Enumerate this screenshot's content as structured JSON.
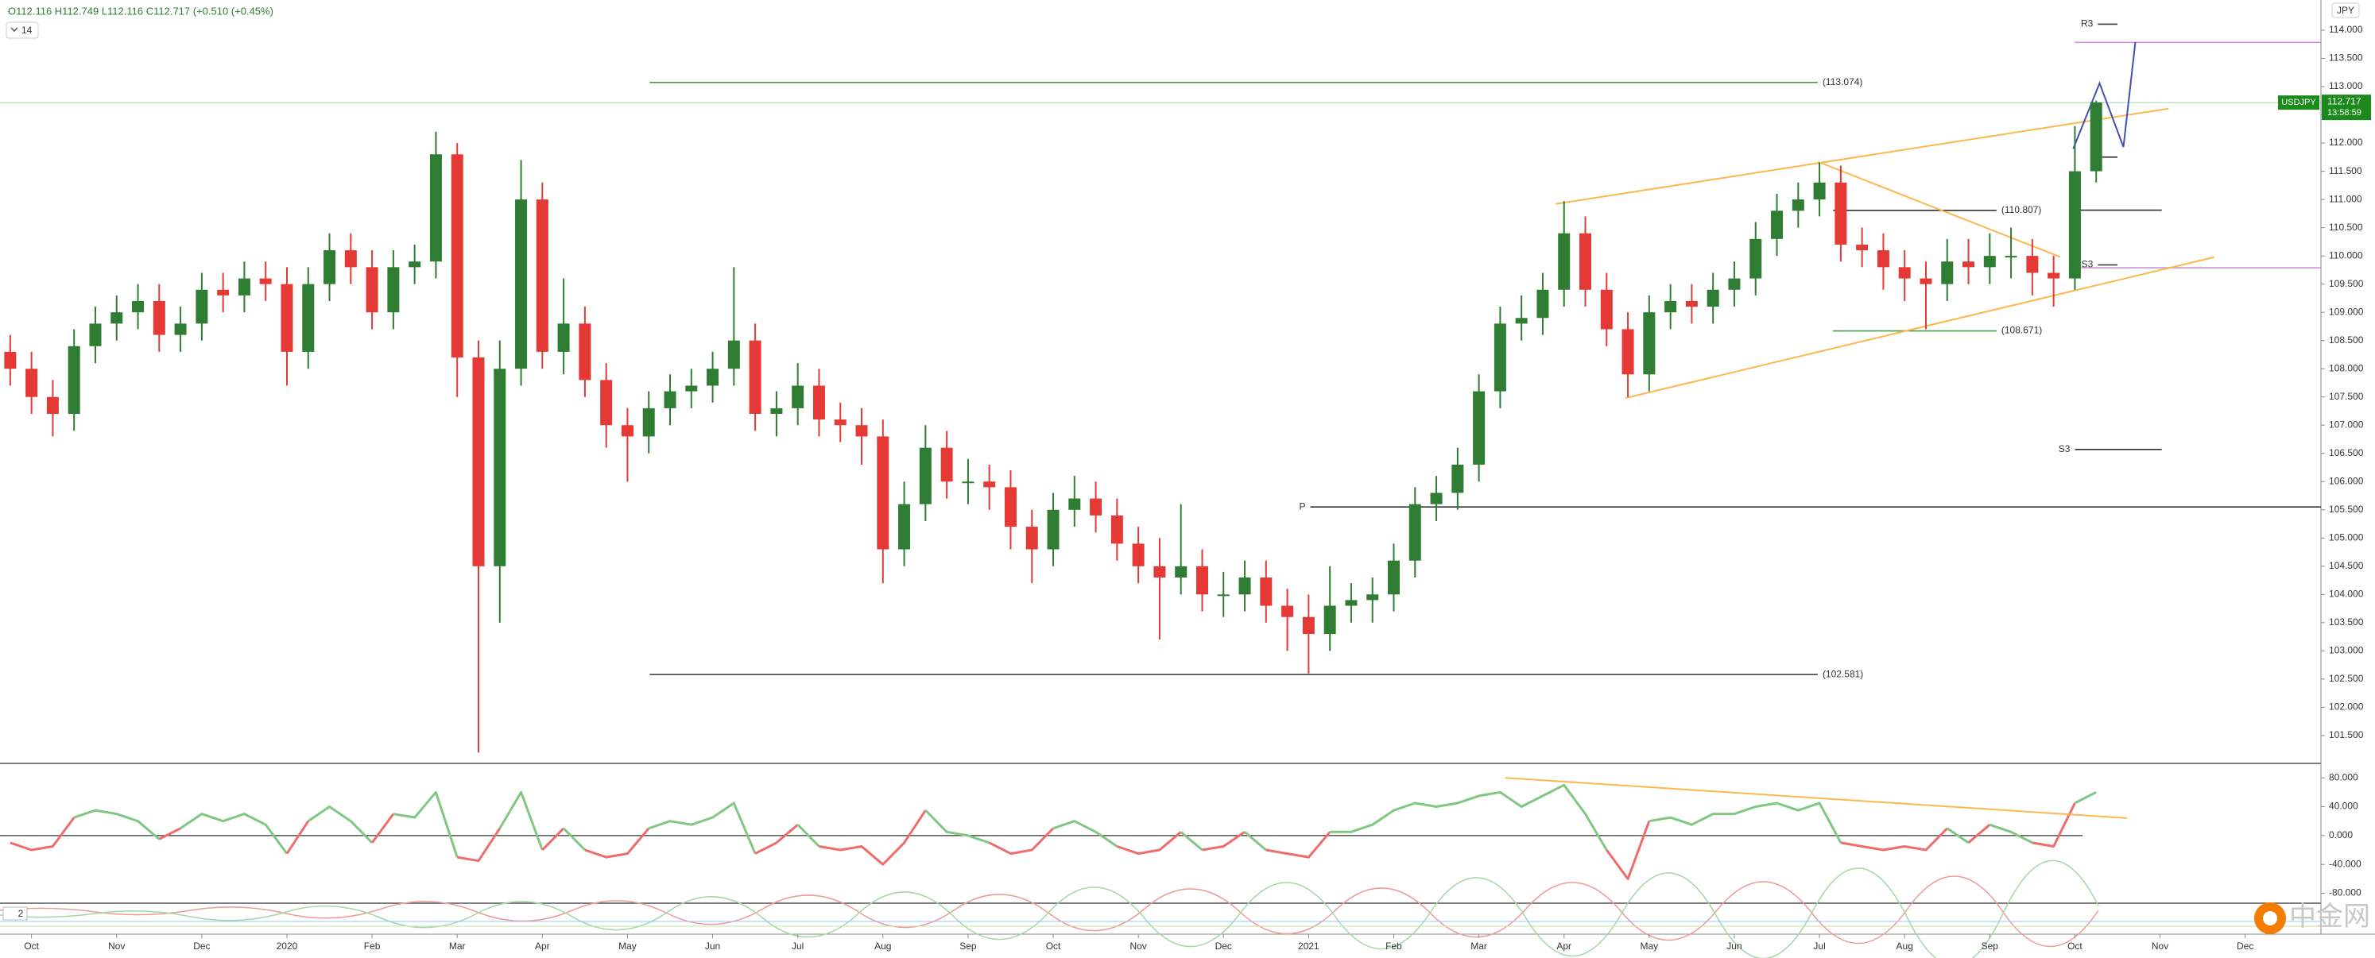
{
  "chart_data": {
    "type": "candlestick",
    "header": "O112.116 H112.749 L112.116 C112.717 (+0.510 (+0.45%)",
    "interval": "14",
    "currency": "JPY",
    "panel_label": "2",
    "watermark": "中金网",
    "up_color": "#2e7d32",
    "down_color": "#e53935",
    "xlim": [
      -0.37,
      26.89
    ],
    "ylim": [
      101.02,
      114.535
    ],
    "xticks": [
      {
        "value": 0,
        "label": "Oct"
      },
      {
        "value": 1,
        "label": "Nov"
      },
      {
        "value": 2,
        "label": "Dec"
      },
      {
        "value": 3,
        "label": "2020"
      },
      {
        "value": 4,
        "label": "Feb"
      },
      {
        "value": 5,
        "label": "Mar"
      },
      {
        "value": 6,
        "label": "Apr"
      },
      {
        "value": 7,
        "label": "May"
      },
      {
        "value": 8,
        "label": "Jun"
      },
      {
        "value": 9,
        "label": "Jul"
      },
      {
        "value": 10,
        "label": "Aug"
      },
      {
        "value": 11,
        "label": "Sep"
      },
      {
        "value": 12,
        "label": "Oct"
      },
      {
        "value": 13,
        "label": "Nov"
      },
      {
        "value": 14,
        "label": "Dec"
      },
      {
        "value": 15,
        "label": "2021"
      },
      {
        "value": 16,
        "label": "Feb"
      },
      {
        "value": 17,
        "label": "Mar"
      },
      {
        "value": 18,
        "label": "Apr"
      },
      {
        "value": 19,
        "label": "May"
      },
      {
        "value": 20,
        "label": "Jun"
      },
      {
        "value": 21,
        "label": "Jul"
      },
      {
        "value": 22,
        "label": "Aug"
      },
      {
        "value": 23,
        "label": "Sep"
      },
      {
        "value": 24,
        "label": "Oct"
      },
      {
        "value": 25,
        "label": "Nov"
      },
      {
        "value": 26,
        "label": "Dec"
      }
    ],
    "yticks": [
      {
        "value": 101.5,
        "label": "101.500"
      },
      {
        "value": 102,
        "label": "102.000"
      },
      {
        "value": 102.5,
        "label": "102.500"
      },
      {
        "value": 103,
        "label": "103.000"
      },
      {
        "value": 103.5,
        "label": "103.500"
      },
      {
        "value": 104,
        "label": "104.000"
      },
      {
        "value": 104.5,
        "label": "104.500"
      },
      {
        "value": 105,
        "label": "105.000"
      },
      {
        "value": 105.5,
        "label": "105.500"
      },
      {
        "value": 106,
        "label": "106.000"
      },
      {
        "value": 106.5,
        "label": "106.500"
      },
      {
        "value": 107,
        "label": "107.000"
      },
      {
        "value": 107.5,
        "label": "107.500"
      },
      {
        "value": 108,
        "label": "108.000"
      },
      {
        "value": 108.5,
        "label": "108.500"
      },
      {
        "value": 109,
        "label": "109.000"
      },
      {
        "value": 109.5,
        "label": "109.500"
      },
      {
        "value": 110,
        "label": "110.000"
      },
      {
        "value": 110.5,
        "label": "110.500"
      },
      {
        "value": 111,
        "label": "111.000"
      },
      {
        "value": 111.5,
        "label": "111.500"
      },
      {
        "value": 112,
        "label": "112.000"
      },
      {
        "value": 112.5,
        "label": "112.500"
      },
      {
        "value": 113,
        "label": "113.000"
      },
      {
        "value": 113.5,
        "label": "113.500"
      },
      {
        "value": 114,
        "label": "114.000"
      }
    ],
    "x": [
      -0.25,
      0,
      0.25,
      0.5,
      0.75,
      1,
      1.25,
      1.5,
      1.75,
      2,
      2.25,
      2.5,
      2.75,
      3,
      3.25,
      3.5,
      3.75,
      4,
      4.25,
      4.5,
      4.75,
      5,
      5.25,
      5.5,
      5.75,
      6,
      6.25,
      6.5,
      6.75,
      7,
      7.25,
      7.5,
      7.75,
      8,
      8.25,
      8.5,
      8.75,
      9,
      9.25,
      9.5,
      9.75,
      10,
      10.25,
      10.5,
      10.75,
      11,
      11.25,
      11.5,
      11.75,
      12,
      12.25,
      12.5,
      12.75,
      13,
      13.25,
      13.5,
      13.75,
      14,
      14.25,
      14.5,
      14.75,
      15,
      15.25,
      15.5,
      15.75,
      16,
      16.25,
      16.5,
      16.75,
      17,
      17.25,
      17.5,
      17.75,
      18,
      18.25,
      18.5,
      18.75,
      19,
      19.25,
      19.5,
      19.75,
      20,
      20.25,
      20.5,
      20.75,
      21,
      21.25,
      21.5,
      21.75,
      22,
      22.25,
      22.5,
      22.75,
      23,
      23.25,
      23.5,
      23.75,
      24,
      24.25
    ],
    "open": [
      108.3,
      108.0,
      107.5,
      107.2,
      108.4,
      108.8,
      109.0,
      109.2,
      108.6,
      108.8,
      109.4,
      109.3,
      109.6,
      109.5,
      108.3,
      109.5,
      110.1,
      109.8,
      109.0,
      109.8,
      109.9,
      111.8,
      108.2,
      104.5,
      108.0,
      111.0,
      108.3,
      108.8,
      107.8,
      107.0,
      106.8,
      107.3,
      107.6,
      107.7,
      108.0,
      108.5,
      107.2,
      107.3,
      107.7,
      107.1,
      107.0,
      106.8,
      104.8,
      105.6,
      106.6,
      106.0,
      106.0,
      105.9,
      105.2,
      104.8,
      105.5,
      105.7,
      105.4,
      104.9,
      104.5,
      104.3,
      104.5,
      104.0,
      104.0,
      104.3,
      103.8,
      103.6,
      103.3,
      103.8,
      103.9,
      104.0,
      104.6,
      105.6,
      105.8,
      106.3,
      107.6,
      108.8,
      108.9,
      109.4,
      110.4,
      109.4,
      108.7,
      107.9,
      109.0,
      109.2,
      109.1,
      109.4,
      109.6,
      110.3,
      110.8,
      111.0,
      111.3,
      110.2,
      110.1,
      109.8,
      109.6,
      109.5,
      109.9,
      109.8,
      110.0,
      110.0,
      109.7,
      109.6,
      111.5
    ],
    "high": [
      108.6,
      108.3,
      107.8,
      108.7,
      109.1,
      109.3,
      109.5,
      109.5,
      109.1,
      109.7,
      109.7,
      109.9,
      109.9,
      109.8,
      109.8,
      110.4,
      110.4,
      110.1,
      110.1,
      110.2,
      112.2,
      112.0,
      108.5,
      108.5,
      111.7,
      111.3,
      109.6,
      109.1,
      108.1,
      107.3,
      107.6,
      107.9,
      108.0,
      108.3,
      109.8,
      108.8,
      107.6,
      108.1,
      108.0,
      107.4,
      107.3,
      107.1,
      106.0,
      107.0,
      106.9,
      106.4,
      106.3,
      106.2,
      105.5,
      105.8,
      106.1,
      106.0,
      105.7,
      105.2,
      105.0,
      105.6,
      104.8,
      104.4,
      104.6,
      104.6,
      104.1,
      104.0,
      104.5,
      104.2,
      104.3,
      104.9,
      105.9,
      106.1,
      106.6,
      107.9,
      109.1,
      109.3,
      109.7,
      110.97,
      110.7,
      109.7,
      109.0,
      109.3,
      109.5,
      109.5,
      109.7,
      109.9,
      110.6,
      111.1,
      111.3,
      111.65,
      111.6,
      110.5,
      110.4,
      110.1,
      109.9,
      110.3,
      110.3,
      110.4,
      110.5,
      110.3,
      110.0,
      112.3,
      112.75
    ],
    "low": [
      107.7,
      107.2,
      106.8,
      106.9,
      108.1,
      108.5,
      108.7,
      108.3,
      108.3,
      108.5,
      109.0,
      109.0,
      109.2,
      107.7,
      108.0,
      109.2,
      109.5,
      108.7,
      108.7,
      109.5,
      109.6,
      107.5,
      101.2,
      103.5,
      107.7,
      108.0,
      107.9,
      107.5,
      106.6,
      106.0,
      106.5,
      107.0,
      107.3,
      107.4,
      107.7,
      106.9,
      106.8,
      107.0,
      106.8,
      106.7,
      106.3,
      104.2,
      104.5,
      105.3,
      105.7,
      105.6,
      105.5,
      104.8,
      104.2,
      104.5,
      105.2,
      105.1,
      104.6,
      104.2,
      103.2,
      104.0,
      103.7,
      103.6,
      103.7,
      103.5,
      103.0,
      102.6,
      103.0,
      103.5,
      103.5,
      103.7,
      104.3,
      105.3,
      105.5,
      106.0,
      107.3,
      108.5,
      108.6,
      109.1,
      109.1,
      108.4,
      107.5,
      107.6,
      108.7,
      108.8,
      108.8,
      109.1,
      109.3,
      110.0,
      110.5,
      110.7,
      109.9,
      109.8,
      109.4,
      109.2,
      108.7,
      109.2,
      109.5,
      109.5,
      109.6,
      109.3,
      109.1,
      109.4,
      111.3
    ],
    "close": [
      108.0,
      107.5,
      107.2,
      108.4,
      108.8,
      109.0,
      109.2,
      108.6,
      108.8,
      109.4,
      109.3,
      109.6,
      109.5,
      108.3,
      109.5,
      110.1,
      109.8,
      109.0,
      109.8,
      109.9,
      111.8,
      108.2,
      104.5,
      108.0,
      111.0,
      108.3,
      108.8,
      107.8,
      107.0,
      106.8,
      107.3,
      107.6,
      107.7,
      108.0,
      108.5,
      107.2,
      107.3,
      107.7,
      107.1,
      107.0,
      106.8,
      104.8,
      105.6,
      106.6,
      106.0,
      106.0,
      105.9,
      105.2,
      104.8,
      105.5,
      105.7,
      105.4,
      104.9,
      104.5,
      104.3,
      104.5,
      104.0,
      104.0,
      104.3,
      103.8,
      103.6,
      103.3,
      103.8,
      103.9,
      104.0,
      104.6,
      105.6,
      105.8,
      106.3,
      107.6,
      108.8,
      108.9,
      109.4,
      110.4,
      109.4,
      108.7,
      107.9,
      109.0,
      109.2,
      109.1,
      109.4,
      109.6,
      110.3,
      110.8,
      111.0,
      111.3,
      110.2,
      110.1,
      109.8,
      109.6,
      109.5,
      109.9,
      109.8,
      110.0,
      110.0,
      109.7,
      109.6,
      111.5,
      112.72
    ],
    "last": {
      "symbol": "USDJPY",
      "value": 112.717,
      "time": "13:58:59",
      "color": "#1b8a1b"
    },
    "levels": [
      {
        "value": 113.074,
        "label": "(113.074)",
        "x": [
          7.26,
          20.98
        ],
        "color": "#43a047",
        "label_at": "end"
      },
      {
        "value": 102.581,
        "label": "(102.581)",
        "x": [
          7.26,
          20.98
        ],
        "color": "#333333",
        "label_at": "end"
      },
      {
        "value": 110.807,
        "label": "(110.807)",
        "x": [
          21.16,
          23.08
        ],
        "color": "#333333",
        "label_at": "end"
      },
      {
        "value": 108.671,
        "label": "(108.671)",
        "x": [
          21.16,
          23.08
        ],
        "color": "#43a047",
        "label_at": "end"
      },
      {
        "value": 105.55,
        "label": "P",
        "x": [
          15.02,
          26.89
        ],
        "color": "#333333",
        "label_at": "start"
      },
      {
        "value": 114.107,
        "label": "R3",
        "x": [
          24.27,
          24.5
        ],
        "color": "#333333",
        "label_at": "start"
      },
      {
        "value": 109.84,
        "label": "S3",
        "x": [
          24.27,
          24.5
        ],
        "color": "#333333",
        "label_at": "start"
      },
      {
        "value": 106.57,
        "label": "S3",
        "x": [
          24.0,
          25.02
        ],
        "color": "#333333",
        "label_at": "start"
      },
      {
        "value": 113.785,
        "x": [
          24.0,
          26.89
        ],
        "color": "#ce93d8"
      },
      {
        "value": 109.79,
        "x": [
          24.0,
          26.89
        ],
        "color": "#ce93d8"
      },
      {
        "value": 110.81,
        "x": [
          24.0,
          25.02
        ],
        "color": "#333333"
      },
      {
        "value": 111.75,
        "x": [
          24.27,
          24.5
        ],
        "color": "#333333"
      }
    ],
    "trendlines": [
      {
        "x": [
          17.9,
          25.1
        ],
        "y": [
          110.92,
          112.61
        ],
        "color": "#ffb74d"
      },
      {
        "x": [
          18.72,
          25.64
        ],
        "y": [
          107.48,
          109.98
        ],
        "color": "#ffb74d"
      },
      {
        "x": [
          20.98,
          23.83
        ],
        "y": [
          111.67,
          109.98
        ],
        "color": "#ffb74d"
      },
      {
        "x": [
          23.98,
          24.29,
          24.57,
          24.71
        ],
        "y": [
          111.9,
          113.06,
          111.93,
          113.79
        ],
        "color": "#3f51b5"
      }
    ],
    "oscillator": {
      "ylim": [
        -92.6,
        98.9
      ],
      "yticks": [
        {
          "value": 80,
          "label": "80.000"
        },
        {
          "value": 40,
          "label": "40.000"
        },
        {
          "value": 0,
          "label": "0.000"
        },
        {
          "value": -40,
          "label": "-40.000"
        },
        {
          "value": -80,
          "label": "-80.000"
        }
      ],
      "up_color": "#81c784",
      "down_color": "#ef6c6c",
      "values": [
        -10,
        -20,
        -15,
        25,
        35,
        30,
        20,
        -5,
        10,
        30,
        20,
        30,
        15,
        -25,
        20,
        40,
        20,
        -10,
        30,
        25,
        60,
        -30,
        -35,
        10,
        60,
        -20,
        10,
        -20,
        -30,
        -25,
        10,
        20,
        15,
        25,
        45,
        -25,
        -10,
        15,
        -15,
        -20,
        -15,
        -40,
        -10,
        35,
        5,
        0,
        -10,
        -25,
        -20,
        10,
        20,
        5,
        -15,
        -25,
        -20,
        5,
        -20,
        -15,
        5,
        -20,
        -25,
        -30,
        5,
        5,
        15,
        35,
        45,
        40,
        45,
        55,
        60,
        40,
        55,
        70,
        30,
        -20,
        -60,
        20,
        25,
        15,
        30,
        30,
        40,
        45,
        35,
        45,
        -10,
        -15,
        -20,
        -15,
        -20,
        10,
        -10,
        15,
        5,
        -10,
        -15,
        45,
        60
      ],
      "trendline": {
        "x": [
          17.31,
          24.61
        ],
        "y": [
          80,
          24.2
        ],
        "color": "#ffb74d"
      }
    }
  }
}
